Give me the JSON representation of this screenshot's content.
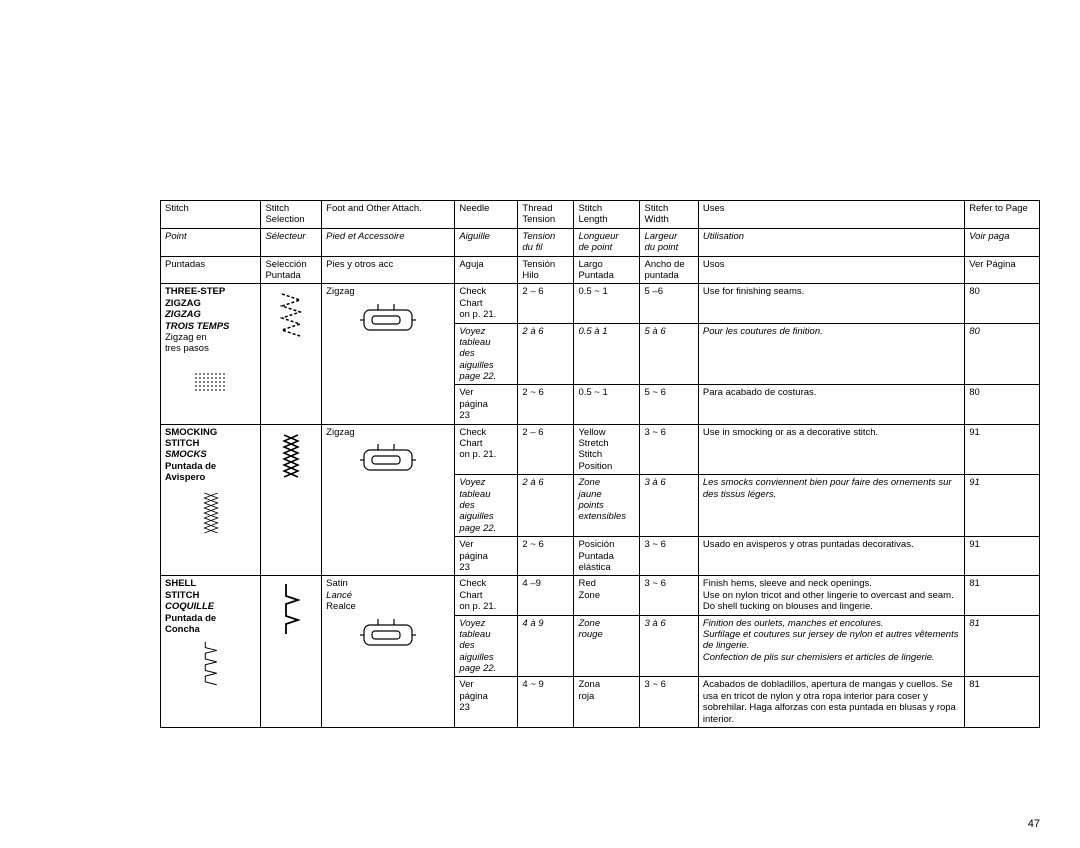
{
  "page_number": "47",
  "header": {
    "r1": [
      "Stitch",
      "Stitch\nSelection",
      "Foot and Other Attach.",
      "Needle",
      "Thread\nTension",
      "Stitch\nLength",
      "Stitch\nWidth",
      "Uses",
      "Refer to Page"
    ],
    "r2": [
      "Point",
      "Sélecteur",
      "Pied et Accessoire",
      "Aiguille",
      "Tension\ndu fil",
      "Longueur\nde point",
      "Largeur\ndu point",
      "Utilisation",
      "Voir paga"
    ],
    "r3": [
      "Puntadas",
      "Selección\nPuntada",
      "Pies y otros acc",
      "Aguja",
      "Tensión\nHilo",
      "Largo\nPuntada",
      "Ancho de\npuntada",
      "Usos",
      "Ver Página"
    ]
  },
  "rows": [
    {
      "name_en": "THREE-STEP\nZIGZAG",
      "name_fr": "ZIGZAG\nTROIS TEMPS",
      "name_es": "Zigzag en\ntres pasos",
      "selection_icon": "three-step-zigzag",
      "foot": {
        "en": "Zigzag",
        "fr": "",
        "es": ""
      },
      "needle": {
        "en": "Check\nChart\non p. 21.",
        "fr": "Voyez\ntableau\ndes\naiguilles\npage 22.",
        "es": "Ver\npágina\n23"
      },
      "tension": {
        "en": "2 – 6",
        "fr": "2 à 6",
        "es": "2 ~ 6"
      },
      "length": {
        "en": "0.5 ~ 1",
        "fr": "0.5 à 1",
        "es": "0.5 ~ 1"
      },
      "width": {
        "en": "5 –6",
        "fr": "5 à 6",
        "es": "5 ~ 6"
      },
      "uses": {
        "en": "Use for finishing seams.",
        "fr": "Pour les coutures de finition.",
        "es": "Para acabado de costuras."
      },
      "page": {
        "en": "80",
        "fr": "80",
        "es": "80"
      },
      "pattern_icon": "three-step-pattern"
    },
    {
      "name_en": "SMOCKING\nSTITCH",
      "name_fr": "SMOCKS",
      "name_es": "Puntada de\nAvispero",
      "selection_icon": "smocking",
      "foot": {
        "en": "Zigzag",
        "fr": "",
        "es": ""
      },
      "needle": {
        "en": "Check\nChart\non p. 21.",
        "fr": "Voyez\ntableau\ndes\naiguilles\npage 22.",
        "es": "Ver\npágina\n23"
      },
      "tension": {
        "en": "2 – 6",
        "fr": "2 à 6",
        "es": "2 ~ 6"
      },
      "length": {
        "en": "Yellow\nStretch\nStitch\nPosition",
        "fr": "Zone\njaune\npoints\nextensibles",
        "es": "Posición\nPuntada\nelástica"
      },
      "width": {
        "en": "3 ~ 6",
        "fr": "3 à 6",
        "es": "3 ~ 6"
      },
      "uses": {
        "en": "Use in smocking or as a decorative stitch.",
        "fr": "Les smocks conviennent bien pour faire des ornements sur des tissus légers.",
        "es": "Usado en avisperos y otras puntadas decorativas."
      },
      "page": {
        "en": "91",
        "fr": "91",
        "es": "91"
      },
      "pattern_icon": "smocking-pattern"
    },
    {
      "name_en": "SHELL\nSTITCH",
      "name_fr": "COQUILLE",
      "name_es": "Puntada de\nConcha",
      "selection_icon": "shell",
      "foot": {
        "en": "Satin",
        "fr": "Lancé",
        "es": "Realce"
      },
      "needle": {
        "en": "Check\nChart\non p. 21.",
        "fr": "Voyez\ntableau\ndes\naiguilles\npage 22.",
        "es": "Ver\npágina\n23"
      },
      "tension": {
        "en": "4 –9",
        "fr": "4 à 9",
        "es": "4 ~ 9"
      },
      "length": {
        "en": "Red\nZone",
        "fr": "Zone\nrouge",
        "es": "Zona\nroja"
      },
      "width": {
        "en": "3 ~ 6",
        "fr": "3 à 6",
        "es": "3 ~ 6"
      },
      "uses": {
        "en": "Finish hems, sleeve and neck openings.\nUse on nylon tricot and other lingerie to overcast and seam.\nDo shell tucking on blouses and lingerie.",
        "fr": "Finition des ourlets, manches et encolures.\nSurfilage et coutures sur jersey de nylon et autres vêtements de lingerie.\nConfection de plis sur chemisiers et articles de lingerie.",
        "es": "Acabados de dobladillos, apertura de mangas y cuellos. Se usa en tricot de nylon y otra ropa interior para coser y sobrehilar. Haga alforzas con esta puntada en blusas y ropa interior."
      },
      "page": {
        "en": "81",
        "fr": "81",
        "es": "81"
      },
      "pattern_icon": "shell-pattern"
    }
  ]
}
